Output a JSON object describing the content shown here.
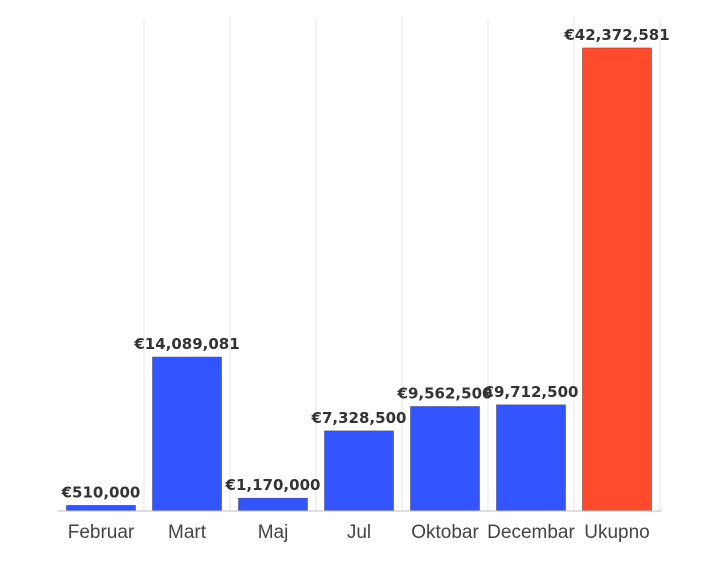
{
  "chart_data": {
    "type": "bar",
    "categories": [
      "Februar",
      "Mart",
      "Maj",
      "Jul",
      "Oktobar",
      "Decembar",
      "Ukupno"
    ],
    "values": [
      510000,
      14089081,
      1170000,
      7328500,
      9562500,
      9712500,
      42372581
    ],
    "data_labels": [
      "€510,000",
      "€14,089,081",
      "€1,170,000",
      "€7,328,500",
      "€9,562,500",
      "€9,712,500",
      "€42,372,581"
    ],
    "colors": [
      "#3355ff",
      "#3355ff",
      "#3355ff",
      "#3355ff",
      "#3355ff",
      "#3355ff",
      "#ff4b2b"
    ],
    "title": "",
    "xlabel": "",
    "ylabel": "",
    "ylim": [
      0,
      42372581
    ],
    "grid": true,
    "legend": "none"
  }
}
